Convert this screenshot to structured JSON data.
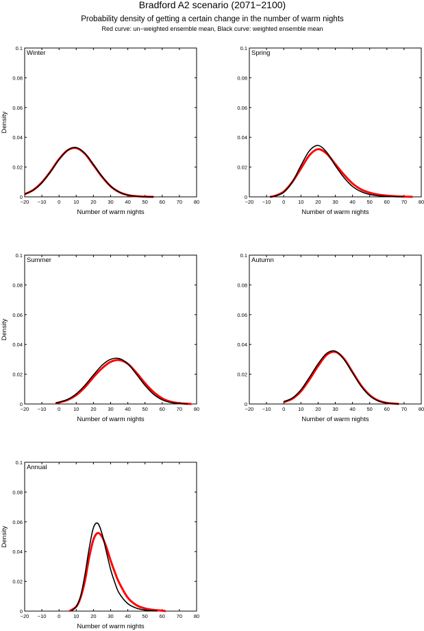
{
  "title": "Bradford A2 scenario (2071−2100)",
  "subtitle": "Probability density of getting a certain change in the number of warm nights",
  "note": "Red curve: un−weighted ensemble mean, Black curve: weighted ensemble mean",
  "colors": {
    "unweighted": "#ff0000",
    "weighted": "#000000"
  },
  "chart_data": [
    {
      "type": "line",
      "panel_label": "Winter",
      "xlabel": "Number of warm nights",
      "ylabel": "Density",
      "xlim": [
        -20,
        80
      ],
      "ylim": [
        0,
        0.1
      ],
      "xticks": [
        "-20",
        "-10",
        "0",
        "10",
        "20",
        "30",
        "40",
        "50",
        "60",
        "70",
        "80"
      ],
      "yticks": [
        "0",
        "0.02",
        "0.04",
        "0.06",
        "0.08",
        "0.1"
      ],
      "grid": false,
      "series": [
        {
          "color": "#000000",
          "x": [
            -20,
            -15,
            -10,
            -5,
            0,
            5,
            10,
            15,
            20,
            25,
            30,
            35,
            40,
            45,
            50,
            55
          ],
          "y": [
            0.0018,
            0.0045,
            0.0095,
            0.0168,
            0.0251,
            0.0314,
            0.0331,
            0.0293,
            0.0217,
            0.0137,
            0.0072,
            0.0032,
            0.0012,
            0.0004,
            0.0001,
            0
          ]
        },
        {
          "color": "#ff0000",
          "x": [
            -20,
            -15,
            -10,
            -5,
            0,
            5,
            10,
            15,
            20,
            25,
            30,
            35,
            40,
            45,
            50,
            55
          ],
          "y": [
            0.0018,
            0.0046,
            0.0097,
            0.017,
            0.0253,
            0.0313,
            0.0328,
            0.029,
            0.0214,
            0.0135,
            0.0071,
            0.0032,
            0.0012,
            0.0004,
            0.0001,
            0
          ]
        }
      ]
    },
    {
      "type": "line",
      "panel_label": "Spring",
      "xlabel": "Number of warm nights",
      "ylabel": "",
      "xlim": [
        -20,
        80
      ],
      "ylim": [
        0,
        0.1
      ],
      "xticks": [
        "-20",
        "-10",
        "0",
        "10",
        "20",
        "30",
        "40",
        "50",
        "60",
        "70",
        "80"
      ],
      "yticks": [
        "0",
        "0.02",
        "0.04",
        "0.06",
        "0.08",
        "0.1"
      ],
      "grid": false,
      "series": [
        {
          "color": "#000000",
          "x": [
            -8,
            -5,
            0,
            5,
            10,
            15,
            20,
            25,
            30,
            35,
            40,
            45,
            50,
            55,
            60,
            65,
            70
          ],
          "y": [
            0,
            0.0005,
            0.003,
            0.01,
            0.021,
            0.031,
            0.0345,
            0.03,
            0.021,
            0.013,
            0.007,
            0.0035,
            0.0016,
            0.0007,
            0.0003,
            0.0001,
            0
          ]
        },
        {
          "color": "#ff0000",
          "x": [
            -8,
            -5,
            0,
            5,
            10,
            15,
            20,
            25,
            30,
            35,
            40,
            45,
            50,
            55,
            60,
            65,
            70,
            75
          ],
          "y": [
            0,
            0.0007,
            0.0035,
            0.01,
            0.019,
            0.028,
            0.032,
            0.029,
            0.022,
            0.015,
            0.009,
            0.005,
            0.0028,
            0.0015,
            0.0008,
            0.0004,
            0.0002,
            0
          ]
        }
      ]
    },
    {
      "type": "line",
      "panel_label": "Summer",
      "xlabel": "Number of warm nights",
      "ylabel": "Density",
      "xlim": [
        -20,
        80
      ],
      "ylim": [
        0,
        0.1
      ],
      "xticks": [
        "-20",
        "-10",
        "0",
        "10",
        "20",
        "30",
        "40",
        "50",
        "60",
        "70",
        "80"
      ],
      "yticks": [
        "0",
        "0.02",
        "0.04",
        "0.06",
        "0.08",
        "0.1"
      ],
      "grid": false,
      "series": [
        {
          "color": "#000000",
          "x": [
            -2,
            0,
            5,
            10,
            15,
            20,
            25,
            30,
            35,
            40,
            45,
            50,
            55,
            60,
            65,
            70,
            75
          ],
          "y": [
            0.0006,
            0.0012,
            0.0031,
            0.0068,
            0.0125,
            0.0195,
            0.026,
            0.03,
            0.0305,
            0.027,
            0.02,
            0.0125,
            0.0065,
            0.0028,
            0.001,
            0.0003,
            0
          ]
        },
        {
          "color": "#ff0000",
          "x": [
            -2,
            0,
            5,
            10,
            15,
            20,
            25,
            30,
            35,
            40,
            45,
            50,
            55,
            60,
            65,
            70,
            75,
            77
          ],
          "y": [
            0.0005,
            0.001,
            0.0027,
            0.006,
            0.0112,
            0.018,
            0.024,
            0.0283,
            0.0295,
            0.027,
            0.021,
            0.014,
            0.008,
            0.0038,
            0.0015,
            0.0005,
            0.0001,
            0
          ]
        }
      ]
    },
    {
      "type": "line",
      "panel_label": "Autumn",
      "xlabel": "Number of warm nights",
      "ylabel": "",
      "xlim": [
        -20,
        80
      ],
      "ylim": [
        0,
        0.1
      ],
      "xticks": [
        "-20",
        "-10",
        "0",
        "10",
        "20",
        "30",
        "40",
        "50",
        "60",
        "70",
        "80"
      ],
      "yticks": [
        "0",
        "0.02",
        "0.04",
        "0.06",
        "0.08",
        "0.1"
      ],
      "grid": false,
      "series": [
        {
          "color": "#000000",
          "x": [
            0,
            5,
            10,
            15,
            20,
            25,
            30,
            35,
            40,
            45,
            50,
            55,
            60,
            65,
            67
          ],
          "y": [
            0.0016,
            0.004,
            0.0095,
            0.018,
            0.027,
            0.034,
            0.0355,
            0.03,
            0.021,
            0.012,
            0.0055,
            0.002,
            0.0006,
            0.0001,
            0
          ]
        },
        {
          "color": "#ff0000",
          "x": [
            0,
            5,
            10,
            15,
            20,
            25,
            30,
            35,
            40,
            45,
            50,
            55,
            60,
            65,
            67
          ],
          "y": [
            0.0012,
            0.0035,
            0.0085,
            0.0165,
            0.0255,
            0.033,
            0.035,
            0.0305,
            0.0215,
            0.0125,
            0.006,
            0.0023,
            0.0007,
            0.0002,
            0
          ]
        }
      ]
    },
    {
      "type": "line",
      "panel_label": "Annual",
      "xlabel": "Number of warm nights",
      "ylabel": "Density",
      "xlim": [
        -20,
        80
      ],
      "ylim": [
        0,
        0.1
      ],
      "xticks": [
        "-20",
        "-10",
        "0",
        "10",
        "20",
        "30",
        "40",
        "50",
        "60",
        "70",
        "80"
      ],
      "yticks": [
        "0",
        "0.02",
        "0.04",
        "0.06",
        "0.08",
        "0.1"
      ],
      "grid": false,
      "series": [
        {
          "color": "#000000",
          "x": [
            7,
            10,
            12.5,
            15,
            17.5,
            20,
            22.5,
            25,
            27.5,
            30,
            32.5,
            35,
            40,
            45,
            50,
            55,
            57
          ],
          "y": [
            0,
            0.003,
            0.01,
            0.024,
            0.042,
            0.056,
            0.059,
            0.052,
            0.04,
            0.028,
            0.019,
            0.012,
            0.005,
            0.002,
            0.0007,
            0.0002,
            0
          ]
        },
        {
          "color": "#ff0000",
          "x": [
            6,
            10,
            12.5,
            15,
            17.5,
            20,
            22.5,
            25,
            27.5,
            30,
            32.5,
            35,
            40,
            45,
            50,
            55,
            60,
            62
          ],
          "y": [
            0,
            0.003,
            0.009,
            0.02,
            0.036,
            0.048,
            0.0525,
            0.05,
            0.043,
            0.034,
            0.026,
            0.019,
            0.009,
            0.004,
            0.0018,
            0.0008,
            0.0003,
            0
          ]
        }
      ]
    }
  ]
}
